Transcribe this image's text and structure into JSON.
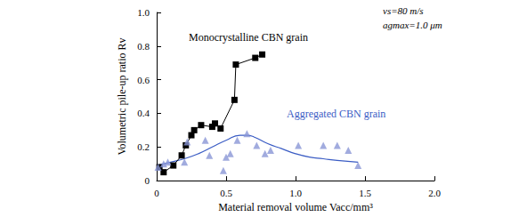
{
  "chart_data": {
    "type": "scatter",
    "x_label": "Material removal volume Vacc/mm³",
    "y_label": "Volumetric pile-up ratio Rv",
    "annotations": [
      "vs=80 m/s",
      "agmax=1.0 μm"
    ],
    "xlim": [
      0,
      2.0
    ],
    "xticks": [
      0,
      0.5,
      {
        "value": 1.0,
        "label": "1.0"
      },
      1.5,
      {
        "value": 2.0,
        "label": "2.0"
      }
    ],
    "ylim": [
      0,
      1.0
    ],
    "yticks": [
      0,
      0.2,
      0.4,
      0.6,
      0.8,
      {
        "value": 1.0,
        "label": "1.0"
      }
    ],
    "grid": false,
    "series": [
      {
        "name": "Monocrystalline CBN grain",
        "type": "line",
        "color": "#000000",
        "marker": "square",
        "line_style": "solid",
        "x": [
          0.02,
          0.05,
          0.12,
          0.18,
          0.21,
          0.25,
          0.27,
          0.32,
          0.4,
          0.42,
          0.46,
          0.56,
          0.57,
          0.71,
          0.76
        ],
        "values": [
          0.08,
          0.05,
          0.09,
          0.15,
          0.21,
          0.27,
          0.3,
          0.33,
          0.32,
          0.34,
          0.31,
          0.48,
          0.69,
          0.73,
          0.75
        ]
      },
      {
        "name": "Aggregated CBN grain",
        "type": "scatter",
        "color": "#3a5cc4",
        "marker": "triangle",
        "x": [
          0.01,
          0.05,
          0.08,
          0.2,
          0.22,
          0.35,
          0.38,
          0.48,
          0.5,
          0.53,
          0.58,
          0.65,
          0.72,
          0.78,
          0.82,
          1.02,
          1.2,
          1.3,
          1.38,
          1.45
        ],
        "values": [
          0.08,
          0.1,
          0.11,
          0.11,
          0.23,
          0.24,
          0.15,
          0.06,
          0.14,
          0.16,
          0.24,
          0.28,
          0.21,
          0.16,
          0.18,
          0.21,
          0.21,
          0.21,
          0.18,
          0.09
        ],
        "fit": {
          "x": [
            0,
            0.1,
            0.2,
            0.3,
            0.4,
            0.5,
            0.6,
            0.65,
            0.7,
            0.8,
            0.9,
            1.0,
            1.1,
            1.2,
            1.3,
            1.45
          ],
          "values": [
            0.09,
            0.11,
            0.13,
            0.16,
            0.2,
            0.24,
            0.27,
            0.27,
            0.26,
            0.22,
            0.19,
            0.16,
            0.14,
            0.13,
            0.12,
            0.11
          ]
        }
      }
    ]
  }
}
